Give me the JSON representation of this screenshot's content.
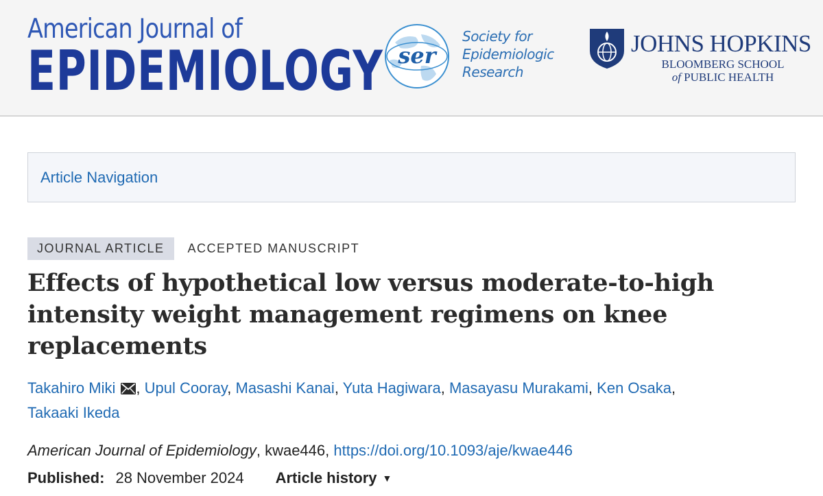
{
  "header": {
    "journal_line1": "American Journal of",
    "journal_line2": "EPIDEMIOLOGY",
    "ser_abbrev": "ser",
    "ser_lines": [
      "Society for",
      "Epidemiologic",
      "Research"
    ],
    "jhu_name": "JOHNS HOPKINS",
    "jhu_sub_line1": "BLOOMBERG SCHOOL",
    "jhu_sub_line2_a": "of",
    "jhu_sub_line2_b": " PUBLIC HEALTH"
  },
  "nav": {
    "label": "Article Navigation"
  },
  "article": {
    "type": "JOURNAL ARTICLE",
    "status": "ACCEPTED MANUSCRIPT",
    "title": "Effects of hypothetical low versus moderate-to-high intensity weight management regimens on knee replacements",
    "authors": [
      "Takahiro Miki",
      "Upul Cooray",
      "Masashi Kanai",
      "Yuta Hagiwara",
      "Masayasu Murakami",
      "Ken Osaka",
      "Takaaki Ikeda"
    ],
    "author_separator": ", ",
    "citation_journal": "American Journal of Epidemiology",
    "citation_id": ", kwae446, ",
    "doi": "https://doi.org/10.1093/aje/kwae446",
    "published_label": "Published:",
    "published_date": "28 November 2024",
    "history_label": "Article history",
    "history_caret": "▼"
  },
  "colors": {
    "journal_blue": "#1d3a99",
    "link_blue": "#1f6ab3",
    "ser_blue": "#2b6eb3",
    "jhu_navy": "#1f3b7a"
  },
  "icons": [
    "globe-icon",
    "shield-icon",
    "mail-icon",
    "caret-down-icon"
  ]
}
